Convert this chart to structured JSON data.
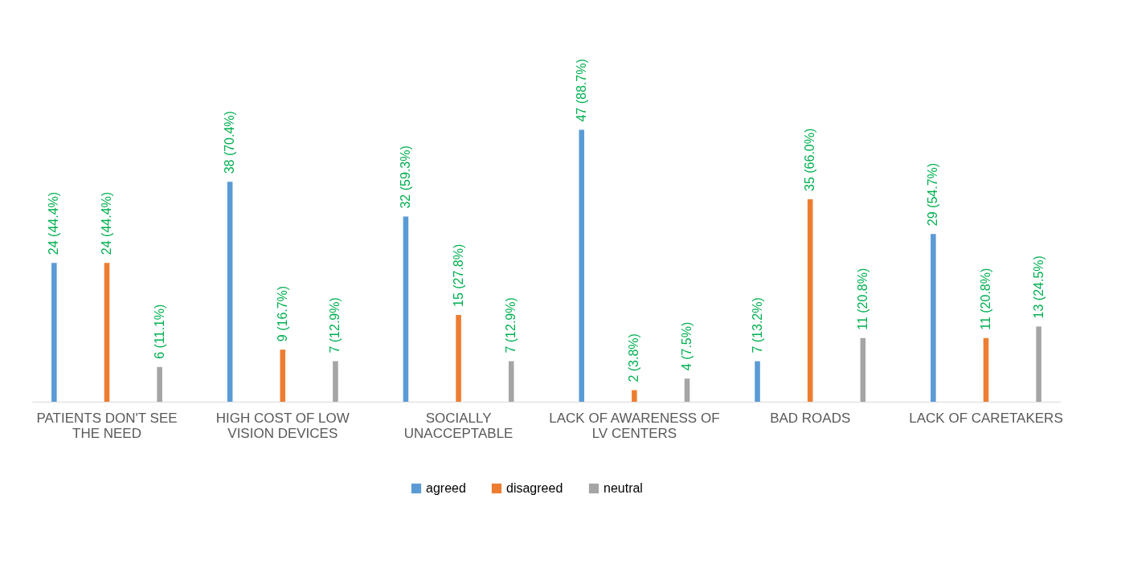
{
  "chart_data": {
    "type": "bar",
    "categories": [
      "PATIENTS DON'T SEE THE NEED",
      "HIGH COST OF LOW VISION DEVICES",
      "SOCIALLY UNACCEPTABLE",
      "LACK OF AWARENESS OF LV CENTERS",
      "BAD ROADS",
      "LACK OF CARETAKERS"
    ],
    "series": [
      {
        "name": "agreed",
        "color": "#5b9bd5",
        "values": [
          24,
          38,
          32,
          47,
          7,
          29
        ],
        "value_labels": [
          "24 (44.4%)",
          "38 (70.4%)",
          "32 (59.3%)",
          "47 (88.7%)",
          "7 (13.2%)",
          "29 (54.7%)"
        ]
      },
      {
        "name": "disagreed",
        "color": "#ed7d31",
        "values": [
          24,
          9,
          15,
          2,
          35,
          11
        ],
        "value_labels": [
          "24 (44.4%)",
          "9 (16.7%)",
          "15 (27.8%)",
          "2 (3.8%)",
          "35 (66.0%)",
          "11 (20.8%)"
        ]
      },
      {
        "name": "neutral",
        "color": "#a5a5a5",
        "values": [
          6,
          7,
          7,
          4,
          11,
          13
        ],
        "value_labels": [
          "6 (11.1%)",
          "7 (12.9%)",
          "7 (12.9%)",
          "4 (7.5%)",
          "11 (20.8%)",
          "13 (24.5%)"
        ]
      }
    ],
    "legend": "bottom",
    "tick_labels": "x"
  }
}
